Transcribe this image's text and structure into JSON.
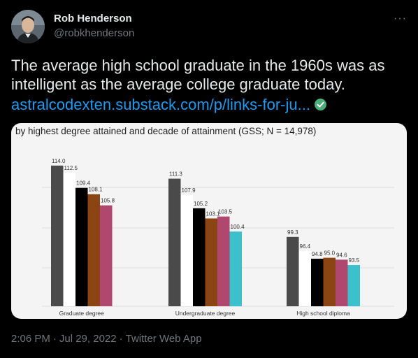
{
  "author": {
    "name": "Rob Henderson",
    "handle": "@robkhenderson"
  },
  "more_icon": "···",
  "tweet": {
    "text": "The average high school graduate in the 1960s was as intelligent as the average college graduate today.",
    "link": "astralcodexten.substack.com/p/links-for-ju..."
  },
  "chart_data": {
    "type": "bar",
    "title": "by highest degree attained and decade of attainment (GSS; N = 14,978)",
    "categories": [
      "Graduate degree",
      "Undergraduate degree",
      "High school diploma"
    ],
    "series": [
      {
        "values": [
          114.0,
          111.3,
          99.3
        ],
        "labels": [
          "114.0",
          "111.3",
          "99.3"
        ],
        "color": "#4a4a4a"
      },
      {
        "values": [
          112.5,
          107.9,
          96.4
        ],
        "labels": [
          "112.5",
          "107.9",
          "96.4"
        ],
        "color": "#ffffff"
      },
      {
        "values": [
          109.4,
          105.2,
          94.8
        ],
        "labels": [
          "109.4",
          "105.2",
          "94.8"
        ],
        "color": "#000000"
      },
      {
        "values": [
          108.1,
          103.1,
          95.0
        ],
        "labels": [
          "108.1",
          "103.1",
          "95.0"
        ],
        "color": "#8b4513"
      },
      {
        "values": [
          105.8,
          103.5,
          94.6
        ],
        "labels": [
          "105.8",
          "103.5",
          "94.6"
        ],
        "color": "#b0476e"
      },
      {
        "values": [
          null,
          100.4,
          93.5
        ],
        "labels": [
          "",
          "100.4",
          "93.5"
        ],
        "color": "#3cc0cc"
      }
    ],
    "ylim": [
      85,
      117
    ],
    "grid": true
  },
  "timestamp": {
    "time": "2:06 PM",
    "date": "Jul 29, 2022",
    "app": "Twitter Web App"
  }
}
